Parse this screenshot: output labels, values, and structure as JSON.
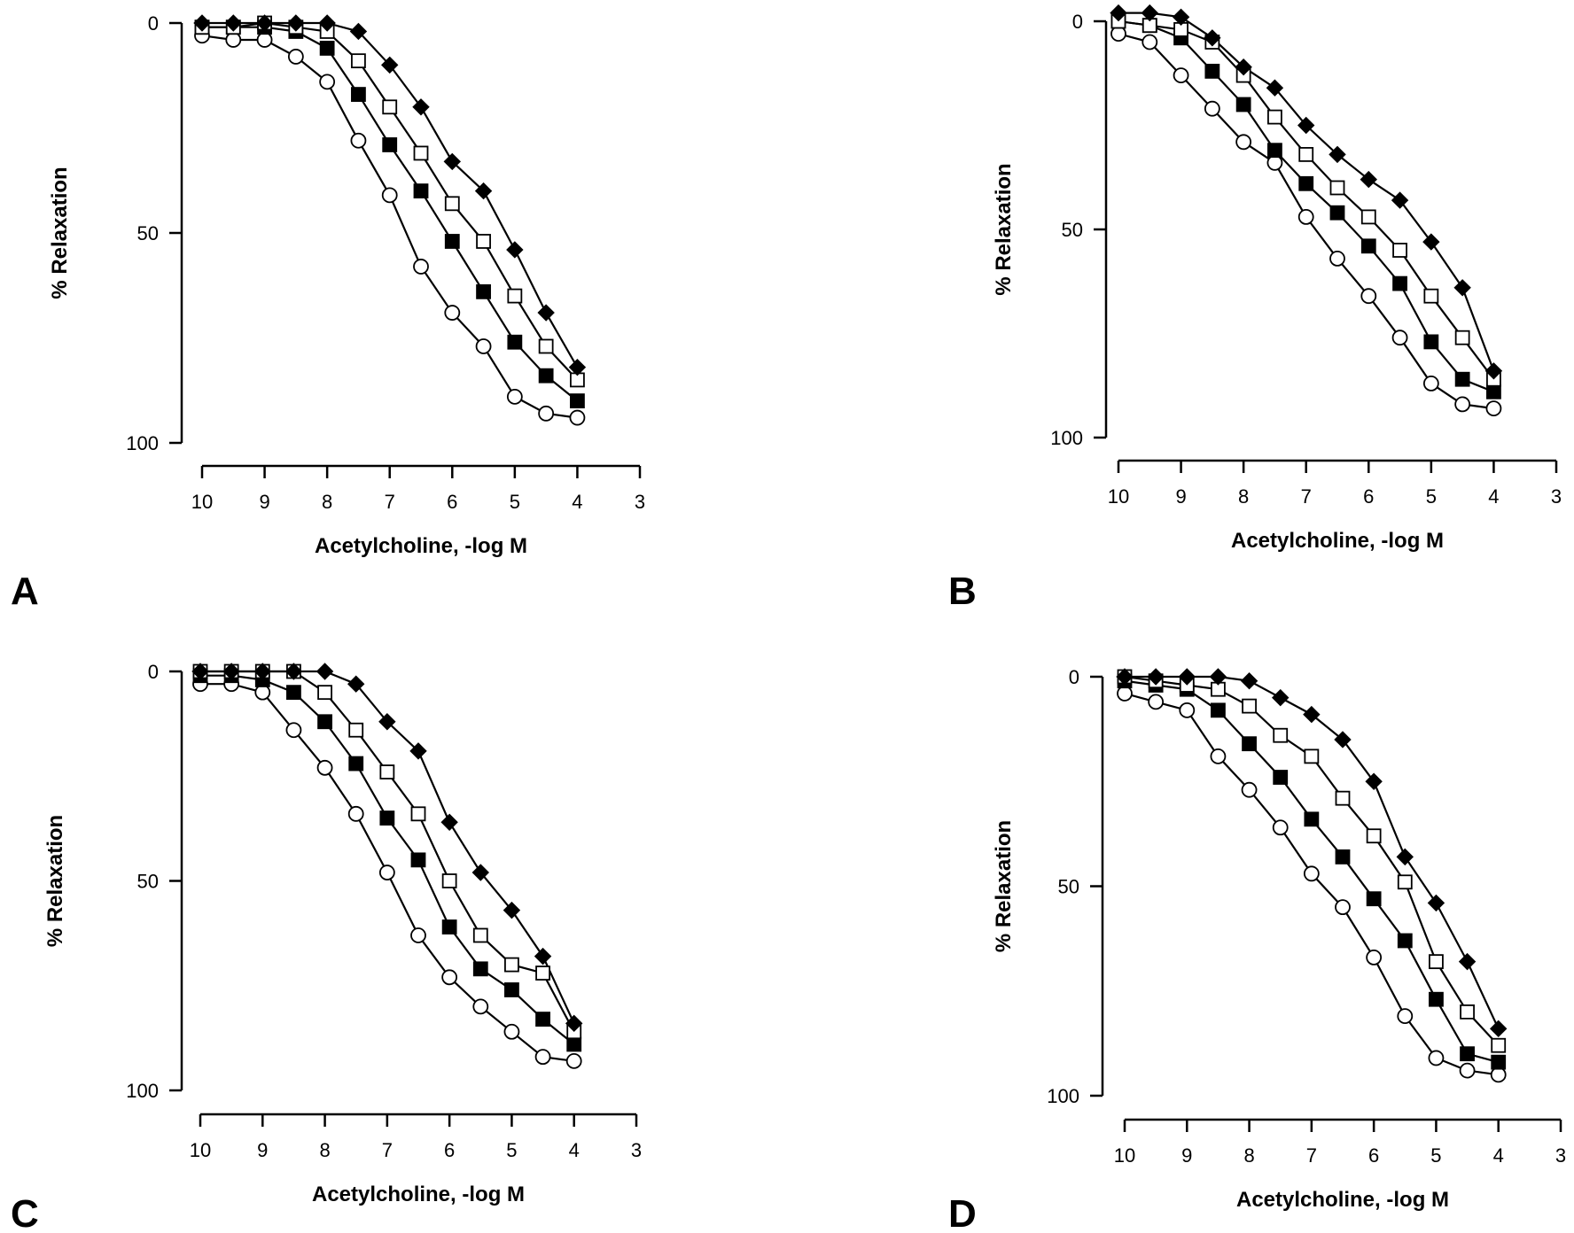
{
  "markers": {
    "filled-diamond": "#000000",
    "open-square": "#ffffff",
    "filled-square": "#000000",
    "open-circle": "#ffffff"
  },
  "chart_data": [
    {
      "panel": "A",
      "type": "line",
      "xlabel": "Acetylcholine, -log M",
      "ylabel": "% Relaxation",
      "xlim": [
        10,
        3
      ],
      "ylim": [
        0,
        100
      ],
      "y_inverted": true,
      "xticks": [
        "10",
        "9",
        "8",
        "7",
        "6",
        "5",
        "4",
        "3"
      ],
      "yticks": [
        "0",
        "50",
        "100"
      ],
      "x": [
        10,
        9.5,
        9,
        8.5,
        8,
        7.5,
        7,
        6.5,
        6,
        5.5,
        5,
        4.5,
        4
      ],
      "series": [
        {
          "marker": "filled-diamond",
          "values": [
            0,
            0,
            0,
            0,
            0,
            2,
            10,
            20,
            33,
            40,
            54,
            69,
            82
          ]
        },
        {
          "marker": "open-square",
          "values": [
            1,
            1,
            0,
            1,
            2,
            9,
            20,
            31,
            43,
            52,
            65,
            77,
            85
          ]
        },
        {
          "marker": "filled-square",
          "values": [
            1,
            1,
            1,
            2,
            6,
            17,
            29,
            40,
            52,
            64,
            76,
            84,
            90
          ]
        },
        {
          "marker": "open-circle",
          "values": [
            3,
            4,
            4,
            8,
            14,
            28,
            41,
            58,
            69,
            77,
            89,
            93,
            94
          ]
        }
      ]
    },
    {
      "panel": "B",
      "type": "line",
      "xlabel": "Acetylcholine, -log M",
      "ylabel": "% Relaxation",
      "xlim": [
        10,
        3
      ],
      "ylim": [
        0,
        100
      ],
      "y_inverted": true,
      "xticks": [
        "10",
        "9",
        "8",
        "7",
        "6",
        "5",
        "4",
        "3"
      ],
      "yticks": [
        "0",
        "50",
        "100"
      ],
      "x": [
        10,
        9.5,
        9,
        8.5,
        8,
        7.5,
        7,
        6.5,
        6,
        5.5,
        5,
        4.5,
        4
      ],
      "series": [
        {
          "marker": "filled-diamond",
          "values": [
            -2,
            -2,
            -1,
            4,
            11,
            16,
            25,
            32,
            38,
            43,
            53,
            64,
            84
          ]
        },
        {
          "marker": "open-square",
          "values": [
            0,
            1,
            2,
            5,
            13,
            23,
            32,
            40,
            47,
            55,
            66,
            76,
            86
          ]
        },
        {
          "marker": "filled-square",
          "values": [
            0,
            1,
            4,
            12,
            20,
            31,
            39,
            46,
            54,
            63,
            77,
            86,
            89
          ]
        },
        {
          "marker": "open-circle",
          "values": [
            3,
            5,
            13,
            21,
            29,
            34,
            47,
            57,
            66,
            76,
            87,
            92,
            93
          ]
        }
      ]
    },
    {
      "panel": "C",
      "type": "line",
      "xlabel": "Acetylcholine, -log M",
      "ylabel": "% Relaxation",
      "xlim": [
        10,
        3
      ],
      "ylim": [
        0,
        100
      ],
      "y_inverted": true,
      "xticks": [
        "10",
        "9",
        "8",
        "7",
        "6",
        "5",
        "4",
        "3"
      ],
      "yticks": [
        "0",
        "50",
        "100"
      ],
      "x": [
        10,
        9.5,
        9,
        8.5,
        8,
        7.5,
        7,
        6.5,
        6,
        5.5,
        5,
        4.5,
        4
      ],
      "series": [
        {
          "marker": "filled-diamond",
          "values": [
            0,
            0,
            0,
            0,
            0,
            3,
            12,
            19,
            36,
            48,
            57,
            68,
            84
          ]
        },
        {
          "marker": "open-square",
          "values": [
            0,
            0,
            0,
            0,
            5,
            14,
            24,
            34,
            50,
            63,
            70,
            72,
            86
          ]
        },
        {
          "marker": "filled-square",
          "values": [
            1,
            1,
            2,
            5,
            12,
            22,
            35,
            45,
            61,
            71,
            76,
            83,
            89
          ]
        },
        {
          "marker": "open-circle",
          "values": [
            3,
            3,
            5,
            14,
            23,
            34,
            48,
            63,
            73,
            80,
            86,
            92,
            93
          ]
        }
      ]
    },
    {
      "panel": "D",
      "type": "line",
      "xlabel": "Acetylcholine, -log M",
      "ylabel": "% Relaxation",
      "xlim": [
        10,
        3
      ],
      "ylim": [
        0,
        100
      ],
      "y_inverted": true,
      "xticks": [
        "10",
        "9",
        "8",
        "7",
        "6",
        "5",
        "4",
        "3"
      ],
      "yticks": [
        "0",
        "50",
        "100"
      ],
      "x": [
        10,
        9.5,
        9,
        8.5,
        8,
        7.5,
        7,
        6.5,
        6,
        5.5,
        5,
        4.5,
        4
      ],
      "series": [
        {
          "marker": "filled-diamond",
          "values": [
            0,
            0,
            0,
            0,
            1,
            5,
            9,
            15,
            25,
            43,
            54,
            68,
            84
          ]
        },
        {
          "marker": "open-square",
          "values": [
            0,
            1,
            2,
            3,
            7,
            14,
            19,
            29,
            38,
            49,
            68,
            80,
            88
          ]
        },
        {
          "marker": "filled-square",
          "values": [
            1,
            2,
            3,
            8,
            16,
            24,
            34,
            43,
            53,
            63,
            77,
            90,
            92
          ]
        },
        {
          "marker": "open-circle",
          "values": [
            4,
            6,
            8,
            19,
            27,
            36,
            47,
            55,
            67,
            81,
            91,
            94,
            95
          ]
        }
      ]
    }
  ]
}
